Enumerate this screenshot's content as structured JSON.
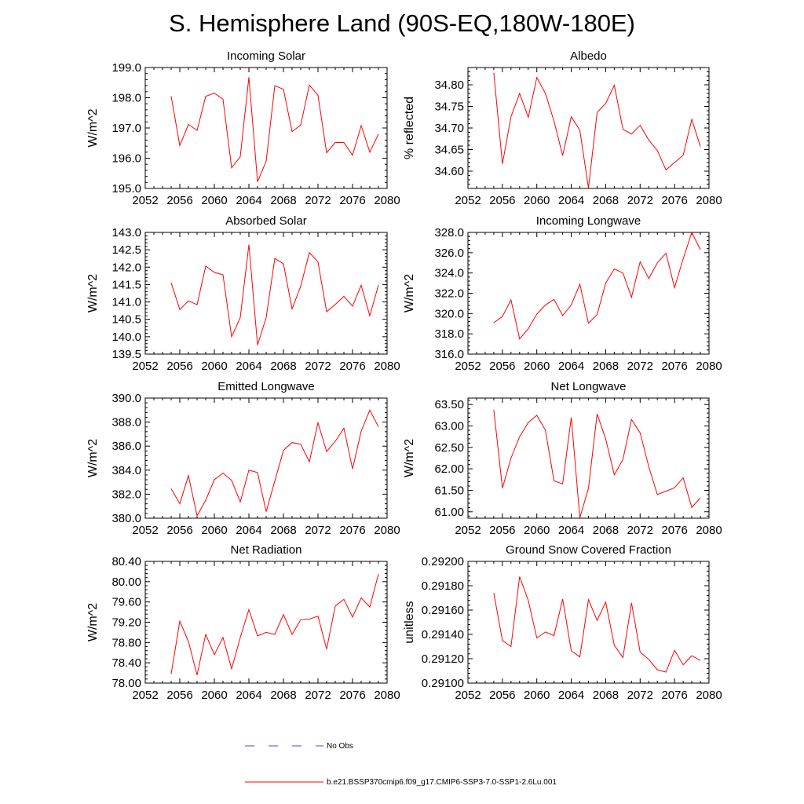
{
  "figure": {
    "title": "S. Hemisphere Land (90S-EQ,180W-180E)",
    "legend": [
      {
        "label": "No Obs",
        "color": "#4a4ad8",
        "dash": true
      },
      {
        "label": "b.e21.BSSP370cmip6.f09_g17.CMIP6-SSP3-7.0-SSP1-2.6Lu.001",
        "color": "#ff0000",
        "dash": false
      }
    ]
  },
  "chart_data": [
    {
      "type": "line",
      "title": "Incoming Solar",
      "ylabel": "W/m^2",
      "xlim": [
        2052,
        2080
      ],
      "xticks": [
        "2052",
        "2056",
        "2060",
        "2064",
        "2068",
        "2072",
        "2076",
        "2080"
      ],
      "ylim": [
        195.0,
        199.0
      ],
      "yticks": [
        "195.0",
        "196.0",
        "197.0",
        "198.0",
        "199.0"
      ],
      "x": [
        2055,
        2056,
        2057,
        2058,
        2059,
        2060,
        2061,
        2062,
        2063,
        2064,
        2065,
        2066,
        2067,
        2068,
        2069,
        2070,
        2071,
        2072,
        2073,
        2074,
        2075,
        2076,
        2077,
        2078,
        2079
      ],
      "series": [
        {
          "color": "#ff0000",
          "values": [
            198.05,
            196.42,
            197.12,
            196.92,
            198.05,
            198.15,
            197.95,
            195.68,
            196.05,
            198.68,
            195.22,
            195.9,
            198.4,
            198.28,
            196.88,
            197.1,
            198.42,
            198.08,
            196.18,
            196.52,
            196.52,
            196.1,
            197.08,
            196.2,
            196.8
          ]
        }
      ]
    },
    {
      "type": "line",
      "title": "Albedo",
      "ylabel": "% reflected",
      "xlim": [
        2052,
        2080
      ],
      "xticks": [
        "2052",
        "2056",
        "2060",
        "2064",
        "2068",
        "2072",
        "2076",
        "2080"
      ],
      "ylim": [
        34.56,
        34.84
      ],
      "yticks": [
        "34.60",
        "34.65",
        "34.70",
        "34.75",
        "34.80"
      ],
      "x": [
        2055,
        2056,
        2057,
        2058,
        2059,
        2060,
        2061,
        2062,
        2063,
        2064,
        2065,
        2066,
        2067,
        2068,
        2069,
        2070,
        2071,
        2072,
        2073,
        2074,
        2075,
        2076,
        2077,
        2078,
        2079
      ],
      "series": [
        {
          "color": "#ff0000",
          "values": [
            34.828,
            34.617,
            34.726,
            34.78,
            34.725,
            34.817,
            34.78,
            34.716,
            34.636,
            34.726,
            34.695,
            34.561,
            34.736,
            34.757,
            34.799,
            34.697,
            34.686,
            34.706,
            34.672,
            34.648,
            34.603,
            34.62,
            34.637,
            34.72,
            34.657
          ]
        }
      ]
    },
    {
      "type": "line",
      "title": "Absorbed Solar",
      "ylabel": "W/m^2",
      "xlim": [
        2052,
        2080
      ],
      "xticks": [
        "2052",
        "2056",
        "2060",
        "2064",
        "2068",
        "2072",
        "2076",
        "2080"
      ],
      "ylim": [
        139.5,
        143.0
      ],
      "yticks": [
        "139.5",
        "140.0",
        "140.5",
        "141.0",
        "141.5",
        "142.0",
        "142.5",
        "143.0"
      ],
      "x": [
        2055,
        2056,
        2057,
        2058,
        2059,
        2060,
        2061,
        2062,
        2063,
        2064,
        2065,
        2066,
        2067,
        2068,
        2069,
        2070,
        2071,
        2072,
        2073,
        2074,
        2075,
        2076,
        2077,
        2078,
        2079
      ],
      "series": [
        {
          "color": "#ff0000",
          "values": [
            141.55,
            140.78,
            141.03,
            140.92,
            142.03,
            141.85,
            141.78,
            140.0,
            140.55,
            142.65,
            139.76,
            140.55,
            142.25,
            142.1,
            140.8,
            141.45,
            142.42,
            142.15,
            140.72,
            140.93,
            141.16,
            140.88,
            141.48,
            140.6,
            141.48
          ]
        }
      ]
    },
    {
      "type": "line",
      "title": "Incoming Longwave",
      "ylabel": "W/m^2",
      "xlim": [
        2052,
        2080
      ],
      "xticks": [
        "2052",
        "2056",
        "2060",
        "2064",
        "2068",
        "2072",
        "2076",
        "2080"
      ],
      "ylim": [
        316.0,
        328.0
      ],
      "yticks": [
        "316.0",
        "318.0",
        "320.0",
        "322.0",
        "324.0",
        "326.0",
        "328.0"
      ],
      "x": [
        2055,
        2056,
        2057,
        2058,
        2059,
        2060,
        2061,
        2062,
        2063,
        2064,
        2065,
        2066,
        2067,
        2068,
        2069,
        2070,
        2071,
        2072,
        2073,
        2074,
        2075,
        2076,
        2077,
        2078,
        2079
      ],
      "series": [
        {
          "color": "#ff0000",
          "values": [
            319.1,
            319.7,
            321.35,
            317.5,
            318.5,
            319.95,
            320.85,
            321.4,
            319.8,
            320.85,
            322.9,
            319.05,
            319.9,
            323.0,
            324.4,
            324.0,
            321.6,
            325.1,
            323.45,
            325.0,
            325.95,
            322.55,
            325.4,
            328.0,
            326.3
          ]
        }
      ]
    },
    {
      "type": "line",
      "title": "Emitted Longwave",
      "ylabel": "W/m^2",
      "xlim": [
        2052,
        2080
      ],
      "xticks": [
        "2052",
        "2056",
        "2060",
        "2064",
        "2068",
        "2072",
        "2076",
        "2080"
      ],
      "ylim": [
        380.0,
        390.0
      ],
      "yticks": [
        "380.0",
        "382.0",
        "384.0",
        "386.0",
        "388.0",
        "390.0"
      ],
      "x": [
        2055,
        2056,
        2057,
        2058,
        2059,
        2060,
        2061,
        2062,
        2063,
        2064,
        2065,
        2066,
        2067,
        2068,
        2069,
        2070,
        2071,
        2072,
        2073,
        2074,
        2075,
        2076,
        2077,
        2078,
        2079
      ],
      "series": [
        {
          "color": "#ff0000",
          "values": [
            382.45,
            381.2,
            383.55,
            380.2,
            381.5,
            383.2,
            383.75,
            383.15,
            381.35,
            384.0,
            383.8,
            380.55,
            383.1,
            385.65,
            386.3,
            386.15,
            384.7,
            387.95,
            385.55,
            386.4,
            387.5,
            384.1,
            387.25,
            389.0,
            387.6
          ]
        }
      ]
    },
    {
      "type": "line",
      "title": "Net Longwave",
      "ylabel": "W/m^2",
      "xlim": [
        2052,
        2080
      ],
      "xticks": [
        "2052",
        "2056",
        "2060",
        "2064",
        "2068",
        "2072",
        "2076",
        "2080"
      ],
      "ylim": [
        60.85,
        63.65
      ],
      "yticks": [
        "61.00",
        "61.50",
        "62.00",
        "62.50",
        "63.00",
        "63.50"
      ],
      "x": [
        2055,
        2056,
        2057,
        2058,
        2059,
        2060,
        2061,
        2062,
        2063,
        2064,
        2065,
        2066,
        2067,
        2068,
        2069,
        2070,
        2071,
        2072,
        2073,
        2074,
        2075,
        2076,
        2077,
        2078,
        2079
      ],
      "series": [
        {
          "color": "#ff0000",
          "values": [
            63.38,
            61.55,
            62.25,
            62.75,
            63.08,
            63.25,
            62.9,
            61.72,
            61.65,
            63.2,
            60.86,
            61.55,
            63.28,
            62.7,
            61.86,
            62.22,
            63.15,
            62.84,
            62.05,
            61.4,
            61.48,
            61.56,
            61.79,
            61.1,
            61.33
          ]
        }
      ]
    },
    {
      "type": "line",
      "title": "Net Radiation",
      "ylabel": "W/m^2",
      "xlim": [
        2052,
        2080
      ],
      "xticks": [
        "2052",
        "2056",
        "2060",
        "2064",
        "2068",
        "2072",
        "2076",
        "2080"
      ],
      "ylim": [
        78.0,
        80.4
      ],
      "yticks": [
        "78.00",
        "78.40",
        "78.80",
        "79.20",
        "79.60",
        "80.00",
        "80.40"
      ],
      "x": [
        2055,
        2056,
        2057,
        2058,
        2059,
        2060,
        2061,
        2062,
        2063,
        2064,
        2065,
        2066,
        2067,
        2068,
        2069,
        2070,
        2071,
        2072,
        2073,
        2074,
        2075,
        2076,
        2077,
        2078,
        2079
      ],
      "series": [
        {
          "color": "#ff0000",
          "values": [
            78.18,
            79.22,
            78.82,
            78.16,
            78.96,
            78.56,
            78.9,
            78.28,
            78.9,
            79.45,
            78.93,
            79.0,
            78.96,
            79.35,
            78.96,
            79.25,
            79.26,
            79.32,
            78.67,
            79.52,
            79.65,
            79.3,
            79.68,
            79.5,
            80.15
          ]
        }
      ]
    },
    {
      "type": "line",
      "title": "Ground Snow Covered Fraction",
      "ylabel": "unitless",
      "xlim": [
        2052,
        2080
      ],
      "xticks": [
        "2052",
        "2056",
        "2060",
        "2064",
        "2068",
        "2072",
        "2076",
        "2080"
      ],
      "ylim": [
        0.291,
        0.292
      ],
      "yticks": [
        "0.29100",
        "0.29120",
        "0.29140",
        "0.29160",
        "0.29180",
        "0.29200"
      ],
      "x": [
        2055,
        2056,
        2057,
        2058,
        2059,
        2060,
        2061,
        2062,
        2063,
        2064,
        2065,
        2066,
        2067,
        2068,
        2069,
        2070,
        2071,
        2072,
        2073,
        2074,
        2075,
        2076,
        2077,
        2078,
        2079
      ],
      "series": [
        {
          "color": "#ff0000",
          "values": [
            0.29174,
            0.29135,
            0.2913,
            0.291875,
            0.29168,
            0.29137,
            0.29142,
            0.29139,
            0.29169,
            0.291265,
            0.291215,
            0.291685,
            0.291515,
            0.291665,
            0.29131,
            0.29121,
            0.29166,
            0.291255,
            0.291195,
            0.29111,
            0.29109,
            0.29127,
            0.29115,
            0.291225,
            0.291185
          ]
        }
      ]
    }
  ]
}
